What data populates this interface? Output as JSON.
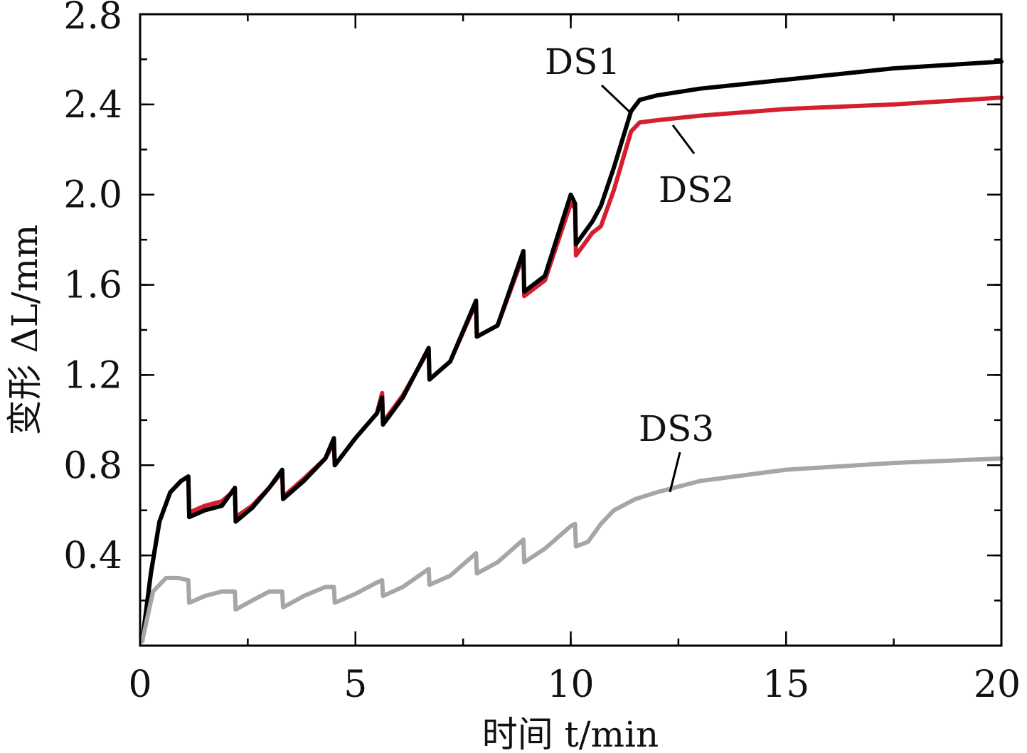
{
  "chart_data": {
    "type": "line",
    "xlabel": "时间 t/min",
    "ylabel": "变形 ΔL/mm",
    "xlim": [
      0,
      20
    ],
    "ylim": [
      0,
      2.8
    ],
    "x_ticks": [
      0,
      5,
      10,
      15,
      20
    ],
    "x_tick_labels": [
      "0",
      "5",
      "10",
      "15",
      "20"
    ],
    "x_minor_step": 2.5,
    "y_ticks": [
      0.4,
      0.8,
      1.2,
      1.6,
      2.0,
      2.4,
      2.8
    ],
    "y_tick_labels": [
      "0.4",
      "0.8",
      "1.2",
      "1.6",
      "2.0",
      "2.4",
      "2.8"
    ],
    "y_minor_step": 0.2,
    "grid": false,
    "legend": "none",
    "series": [
      {
        "name": "DS2",
        "color": "#d2202e",
        "x": [
          0.05,
          0.25,
          0.45,
          0.7,
          0.95,
          1.12,
          1.14,
          1.5,
          1.9,
          2.2,
          2.22,
          2.6,
          3.0,
          3.3,
          3.32,
          3.8,
          4.3,
          4.5,
          4.52,
          5.0,
          5.5,
          5.62,
          5.64,
          6.1,
          6.7,
          6.72,
          7.2,
          7.8,
          7.82,
          8.3,
          8.9,
          8.92,
          9.4,
          10.0,
          10.1,
          10.12,
          10.5,
          10.7,
          11.0,
          11.4,
          11.6,
          12.0,
          13.0,
          15.0,
          17.5,
          20.0
        ],
        "y": [
          0.02,
          0.32,
          0.55,
          0.68,
          0.73,
          0.75,
          0.59,
          0.62,
          0.64,
          0.69,
          0.57,
          0.62,
          0.7,
          0.77,
          0.66,
          0.74,
          0.83,
          0.9,
          0.8,
          0.92,
          1.03,
          1.12,
          0.99,
          1.11,
          1.31,
          1.18,
          1.26,
          1.52,
          1.37,
          1.42,
          1.73,
          1.55,
          1.62,
          1.96,
          1.94,
          1.73,
          1.83,
          1.86,
          2.02,
          2.28,
          2.32,
          2.33,
          2.35,
          2.38,
          2.4,
          2.43
        ]
      },
      {
        "name": "DS1",
        "color": "#000000",
        "x": [
          0.05,
          0.25,
          0.45,
          0.7,
          0.95,
          1.12,
          1.14,
          1.5,
          1.9,
          2.2,
          2.22,
          2.6,
          3.0,
          3.3,
          3.32,
          3.8,
          4.3,
          4.5,
          4.52,
          5.0,
          5.5,
          5.62,
          5.64,
          6.1,
          6.7,
          6.72,
          7.2,
          7.8,
          7.82,
          8.3,
          8.9,
          8.92,
          9.4,
          10.0,
          10.1,
          10.12,
          10.5,
          10.7,
          11.0,
          11.4,
          11.6,
          12.0,
          13.0,
          15.0,
          17.5,
          20.0
        ],
        "y": [
          0.02,
          0.32,
          0.55,
          0.68,
          0.73,
          0.75,
          0.57,
          0.6,
          0.62,
          0.7,
          0.55,
          0.61,
          0.7,
          0.78,
          0.65,
          0.73,
          0.83,
          0.92,
          0.8,
          0.92,
          1.03,
          1.1,
          0.98,
          1.1,
          1.32,
          1.18,
          1.26,
          1.53,
          1.37,
          1.42,
          1.75,
          1.57,
          1.64,
          2.0,
          1.96,
          1.78,
          1.88,
          1.95,
          2.12,
          2.37,
          2.42,
          2.44,
          2.47,
          2.51,
          2.56,
          2.59
        ]
      },
      {
        "name": "DS3",
        "color": "#a6a6a6",
        "x": [
          0.05,
          0.3,
          0.6,
          0.9,
          1.12,
          1.14,
          1.5,
          1.9,
          2.2,
          2.22,
          2.6,
          3.0,
          3.3,
          3.32,
          3.8,
          4.3,
          4.5,
          4.52,
          5.0,
          5.5,
          5.62,
          5.64,
          6.1,
          6.7,
          6.72,
          7.2,
          7.8,
          7.82,
          8.3,
          8.9,
          8.92,
          9.4,
          10.0,
          10.1,
          10.12,
          10.4,
          10.7,
          11.0,
          11.5,
          12.0,
          13.0,
          15.0,
          17.5,
          20.0
        ],
        "y": [
          0.02,
          0.24,
          0.3,
          0.3,
          0.29,
          0.19,
          0.22,
          0.24,
          0.24,
          0.16,
          0.2,
          0.24,
          0.24,
          0.17,
          0.22,
          0.26,
          0.26,
          0.19,
          0.23,
          0.28,
          0.29,
          0.22,
          0.26,
          0.34,
          0.27,
          0.31,
          0.41,
          0.32,
          0.37,
          0.47,
          0.37,
          0.43,
          0.53,
          0.54,
          0.44,
          0.46,
          0.54,
          0.6,
          0.65,
          0.68,
          0.73,
          0.78,
          0.81,
          0.83
        ]
      }
    ],
    "annotations": [
      {
        "text": "DS1",
        "series": "DS1"
      },
      {
        "text": "DS2",
        "series": "DS2"
      },
      {
        "text": "DS3",
        "series": "DS3"
      }
    ]
  }
}
